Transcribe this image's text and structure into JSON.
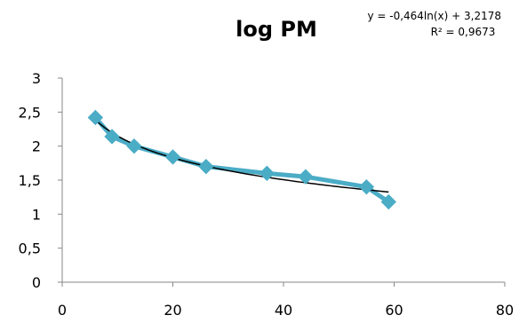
{
  "chart_data": {
    "type": "scatter",
    "title": "log PM",
    "xlabel": "",
    "ylabel": "",
    "xlim": [
      0,
      80
    ],
    "ylim": [
      0,
      3
    ],
    "x_ticks": [
      "0",
      "20",
      "40",
      "60",
      "80"
    ],
    "y_ticks": [
      "0",
      "0,5",
      "1",
      "1,5",
      "2",
      "2,5",
      "3"
    ],
    "grid": false,
    "legend": "none",
    "series": [
      {
        "x": [
          6,
          9,
          13,
          20,
          26,
          37,
          44,
          55,
          59
        ],
        "y": [
          2.42,
          2.14,
          2.0,
          1.84,
          1.7,
          1.6,
          1.55,
          1.4,
          1.18
        ],
        "color": "#4BACC6",
        "marker": "diamond",
        "line": true
      }
    ],
    "trendline": {
      "kind": "logarithmic",
      "a": -0.464,
      "b": 3.2178,
      "x_range": [
        6,
        59
      ],
      "color": "#000000",
      "equation": "y = -0,464ln(x) + 3,2178",
      "r_squared": "R² = 0,9673"
    }
  }
}
